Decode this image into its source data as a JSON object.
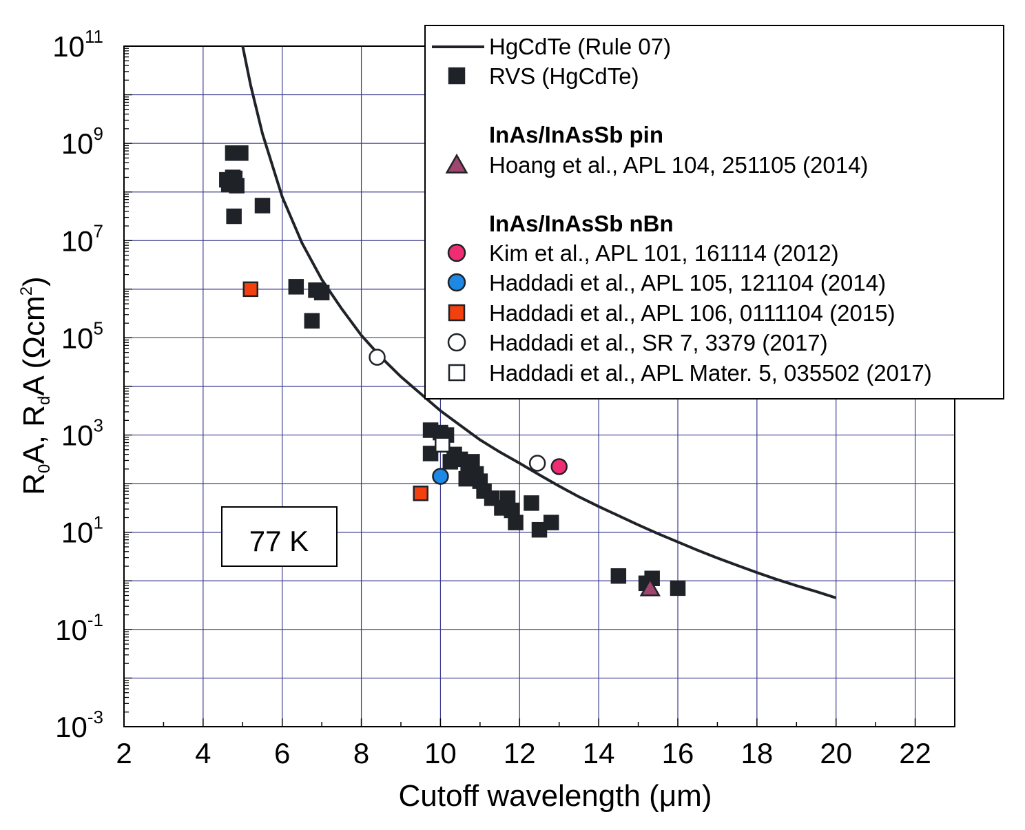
{
  "chart_data": {
    "type": "scatter",
    "title": "",
    "xlabel": "Cutoff wavelength (μm)",
    "ylabel": {
      "parts": [
        "R",
        "0",
        "A, R",
        "d",
        "A (Ωcm",
        "2",
        ")"
      ]
    },
    "xlim": [
      2,
      23
    ],
    "ylim_log10": [
      -3,
      11
    ],
    "xticks": [
      2,
      4,
      6,
      8,
      10,
      12,
      14,
      16,
      18,
      20,
      22
    ],
    "yticks": [
      {
        "base": "10",
        "exp": "-3",
        "log": -3
      },
      {
        "base": "10",
        "exp": "-1",
        "log": -1
      },
      {
        "base": "10",
        "exp": "1",
        "log": 1
      },
      {
        "base": "10",
        "exp": "3",
        "log": 3
      },
      {
        "base": "10",
        "exp": "5",
        "log": 5
      },
      {
        "base": "10",
        "exp": "7",
        "log": 7
      },
      {
        "base": "10",
        "exp": "9",
        "log": 9
      },
      {
        "base": "10",
        "exp": "11",
        "log": 11
      }
    ],
    "grid": true,
    "annotation": "77 K",
    "line": {
      "name": "HgCdTe (Rule 07)",
      "points": [
        [
          5.0,
          11.0
        ],
        [
          5.2,
          10.2
        ],
        [
          5.5,
          9.2
        ],
        [
          6.0,
          7.9
        ],
        [
          6.5,
          6.95
        ],
        [
          7.0,
          6.2
        ],
        [
          7.5,
          5.6
        ],
        [
          8.0,
          5.05
        ],
        [
          8.5,
          4.6
        ],
        [
          9.0,
          4.2
        ],
        [
          9.5,
          3.85
        ],
        [
          10.0,
          3.5
        ],
        [
          10.5,
          3.2
        ],
        [
          11.0,
          2.9
        ],
        [
          11.5,
          2.65
        ],
        [
          12.0,
          2.42
        ],
        [
          12.5,
          2.18
        ],
        [
          13.0,
          1.95
        ],
        [
          13.5,
          1.73
        ],
        [
          14.0,
          1.53
        ],
        [
          14.5,
          1.34
        ],
        [
          15.0,
          1.15
        ],
        [
          15.5,
          0.97
        ],
        [
          16.0,
          0.8
        ],
        [
          16.5,
          0.63
        ],
        [
          17.0,
          0.47
        ],
        [
          17.5,
          0.32
        ],
        [
          18.0,
          0.17
        ],
        [
          18.5,
          0.03
        ],
        [
          19.0,
          -0.1
        ],
        [
          19.5,
          -0.22
        ],
        [
          20.0,
          -0.35
        ]
      ]
    },
    "series": [
      {
        "name": "RVS (HgCdTe)",
        "marker": "square",
        "fill": "#1f2328",
        "stroke": "#1f2328",
        "points": [
          [
            4.6,
            8.25
          ],
          [
            4.65,
            8.15
          ],
          [
            4.75,
            8.3
          ],
          [
            4.8,
            8.28
          ],
          [
            4.85,
            8.13
          ],
          [
            4.75,
            8.8
          ],
          [
            4.95,
            8.8
          ],
          [
            4.78,
            7.5
          ],
          [
            5.5,
            7.72
          ],
          [
            6.35,
            6.05
          ],
          [
            6.85,
            5.98
          ],
          [
            7.0,
            5.93
          ],
          [
            6.75,
            5.35
          ],
          [
            9.75,
            3.1
          ],
          [
            10.0,
            3.05
          ],
          [
            10.15,
            3.0
          ],
          [
            10.25,
            2.45
          ],
          [
            10.35,
            2.6
          ],
          [
            10.5,
            2.5
          ],
          [
            9.75,
            2.62
          ],
          [
            10.65,
            2.1
          ],
          [
            10.7,
            2.35
          ],
          [
            10.8,
            2.45
          ],
          [
            10.9,
            2.2
          ],
          [
            11.0,
            2.05
          ],
          [
            11.1,
            1.85
          ],
          [
            11.3,
            1.7
          ],
          [
            11.55,
            1.5
          ],
          [
            11.7,
            1.7
          ],
          [
            11.8,
            1.45
          ],
          [
            11.9,
            1.2
          ],
          [
            12.3,
            1.6
          ],
          [
            12.5,
            1.05
          ],
          [
            12.8,
            1.2
          ],
          [
            14.5,
            0.1
          ],
          [
            15.2,
            -0.05
          ],
          [
            15.35,
            0.05
          ],
          [
            16.0,
            -0.15
          ]
        ]
      },
      {
        "name": "Hoang et al., APL 104, 251105 (2014)",
        "marker": "triangle",
        "fill": "#a0456e",
        "stroke": "#1f2328",
        "points": [
          [
            15.3,
            -0.15
          ]
        ]
      },
      {
        "name": "Kim et al., APL  101, 161114  (2012)",
        "marker": "circle",
        "fill": "#ee2d73",
        "stroke": "#1f2328",
        "points": [
          [
            13.0,
            2.35
          ]
        ]
      },
      {
        "name": "Haddadi et al., APL 105, 121104 (2014)",
        "marker": "circle",
        "fill": "#1e88e5",
        "stroke": "#1f2328",
        "points": [
          [
            10.0,
            2.15
          ]
        ]
      },
      {
        "name": "Haddadi et al., APL 106, 0111104 (2015)",
        "marker": "square",
        "fill": "#f2400f",
        "stroke": "#1f2328",
        "points": [
          [
            5.2,
            6.0
          ],
          [
            9.5,
            1.8
          ]
        ]
      },
      {
        "name": "Haddadi et al., SR 7, 3379 (2017)",
        "marker": "circle-open",
        "fill": "#ffffff",
        "stroke": "#1f2328",
        "points": [
          [
            8.4,
            4.6
          ],
          [
            12.45,
            2.42
          ]
        ]
      },
      {
        "name": "Haddadi et al., APL Mater. 5, 035502 (2017)",
        "marker": "square-open",
        "fill": "#ffffff",
        "stroke": "#1f2328",
        "points": [
          [
            10.05,
            2.8
          ]
        ]
      }
    ],
    "legend": {
      "position": "top-right",
      "entries": [
        {
          "kind": "line",
          "text": "HgCdTe (Rule 07)"
        },
        {
          "kind": "marker",
          "series": 0,
          "text": "RVS (HgCdTe)"
        },
        {
          "kind": "header",
          "text": "InAs/InAsSb pin"
        },
        {
          "kind": "marker",
          "series": 1,
          "text": "Hoang et al., APL 104, 251105 (2014)"
        },
        {
          "kind": "header",
          "text": "InAs/InAsSb nBn"
        },
        {
          "kind": "marker",
          "series": 2,
          "text": "Kim et al., APL  101, 161114  (2012)"
        },
        {
          "kind": "marker",
          "series": 3,
          "text": "Haddadi et al., APL 105, 121104 (2014)"
        },
        {
          "kind": "marker",
          "series": 4,
          "text": "Haddadi et al., APL 106, 0111104 (2015)"
        },
        {
          "kind": "marker",
          "series": 5,
          "text": "Haddadi et al., SR 7, 3379 (2017)"
        },
        {
          "kind": "marker",
          "series": 6,
          "text": "Haddadi et al., APL Mater. 5, 035502 (2017)"
        }
      ]
    },
    "colors": {
      "grid": "#3b3b8f",
      "line": "#1f2328"
    }
  }
}
